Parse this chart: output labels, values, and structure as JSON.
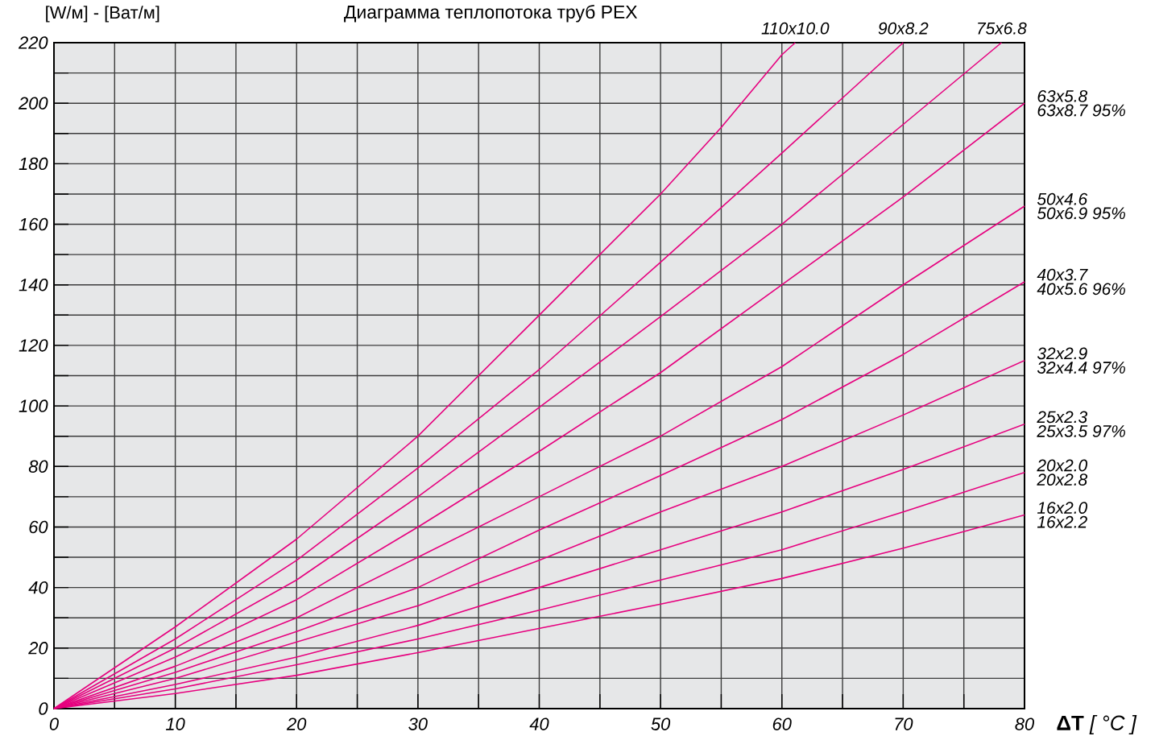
{
  "chart_data": {
    "type": "line",
    "title": "Диаграмма теплопотока труб PEX",
    "xlabel": "**ΔT** *[ °C ]*",
    "ylabel": "[W/м] - [Ват/м]",
    "xlim": [
      0,
      80
    ],
    "ylim": [
      0,
      220
    ],
    "xticks": [
      0,
      10,
      20,
      30,
      40,
      50,
      60,
      70,
      80
    ],
    "yticks": [
      0,
      20,
      40,
      60,
      80,
      100,
      120,
      140,
      160,
      180,
      200,
      220
    ],
    "grid": true,
    "legend": false,
    "marker": "none",
    "line_style": "solid",
    "series": [
      {
        "name": "110x10.0",
        "color": "#e6007e",
        "x": [
          0,
          10,
          20,
          30,
          40,
          45,
          50,
          55,
          60,
          61.1
        ],
        "values": [
          0,
          27,
          56,
          90,
          130,
          150,
          170,
          192,
          216,
          220
        ]
      },
      {
        "name": "90x8.2",
        "color": "#e6007e",
        "x": [
          0,
          10,
          20,
          30,
          40,
          50,
          60,
          70
        ],
        "values": [
          0,
          23,
          49,
          79.5,
          112,
          147.5,
          183.5,
          220
        ]
      },
      {
        "name": "75x6.8",
        "color": "#e6007e",
        "x": [
          0,
          10,
          20,
          30,
          40,
          50,
          60,
          70,
          78.1
        ],
        "values": [
          0,
          20,
          42.5,
          70,
          99.5,
          129.5,
          160,
          193,
          220
        ]
      },
      {
        "name": "63x5.8",
        "color": "#e6007e",
        "x": [
          0,
          10,
          20,
          30,
          40,
          50,
          60,
          70,
          80
        ],
        "values": [
          0,
          17,
          36,
          60,
          85,
          111,
          140,
          169,
          200
        ]
      },
      {
        "name": "50x4.6",
        "color": "#e6007e",
        "x": [
          0,
          10,
          20,
          30,
          40,
          50,
          60,
          70,
          80
        ],
        "values": [
          0,
          14,
          30,
          50,
          70,
          90,
          113,
          140,
          166
        ]
      },
      {
        "name": "40x3.7",
        "color": "#e6007e",
        "x": [
          0,
          10,
          20,
          30,
          40,
          50,
          60,
          70,
          80
        ],
        "values": [
          0,
          12,
          25.5,
          40,
          59,
          77,
          95.5,
          117,
          141
        ]
      },
      {
        "name": "32x2.9",
        "color": "#e6007e",
        "x": [
          0,
          10,
          20,
          30,
          40,
          50,
          60,
          70,
          80
        ],
        "values": [
          0,
          10,
          22,
          34,
          49,
          65,
          80,
          97,
          115
        ]
      },
      {
        "name": "25x2.3",
        "color": "#e6007e",
        "x": [
          0,
          10,
          20,
          30,
          40,
          50,
          60,
          70,
          80
        ],
        "values": [
          0,
          8,
          17,
          27.5,
          40,
          52.5,
          65,
          79,
          94
        ]
      },
      {
        "name": "20x2.0",
        "color": "#e6007e",
        "x": [
          0,
          10,
          20,
          30,
          40,
          50,
          60,
          70,
          80
        ],
        "values": [
          0,
          6.5,
          14.5,
          23,
          32.5,
          42.5,
          52.5,
          65,
          78
        ]
      },
      {
        "name": "16x2.0",
        "color": "#e6007e",
        "x": [
          0,
          10,
          20,
          30,
          40,
          50,
          60,
          70,
          80
        ],
        "values": [
          0,
          5,
          11,
          18.5,
          26.5,
          34.5,
          43,
          53,
          64
        ]
      }
    ],
    "annotations": [
      "63x8.7 95%",
      "50x6.9 95%",
      "40x5.6 96%",
      "32x4.4 97%",
      "25x3.5 97%",
      "20x2.8",
      "16x2.2"
    ]
  }
}
